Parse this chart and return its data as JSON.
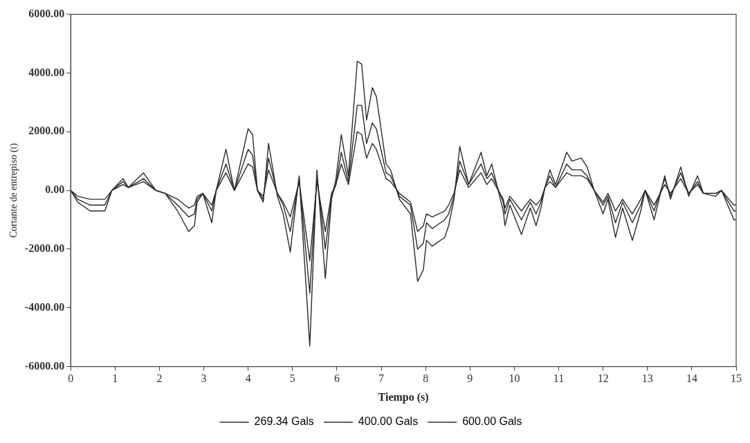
{
  "chart_data": {
    "type": "line",
    "xlabel": "Tiempo (s)",
    "ylabel": "Cortante de entrepiso (t)",
    "legend": "bottom",
    "grid": false,
    "marker": "none",
    "line_style": "solid",
    "xlim": [
      0,
      15
    ],
    "xticks": [
      0,
      1,
      2,
      3,
      4,
      5,
      6,
      7,
      8,
      9,
      10,
      11,
      12,
      13,
      14,
      15
    ],
    "ylim": [
      -6000,
      6000
    ],
    "yticks": [
      {
        "value": -6000,
        "label": "-6000.00"
      },
      {
        "value": -4000,
        "label": "-4000.00"
      },
      {
        "value": -2000,
        "label": "-2000.00"
      },
      {
        "value": 0,
        "label": "0.00"
      },
      {
        "value": 2000,
        "label": "2000.00"
      },
      {
        "value": 4000,
        "label": "4000.00"
      },
      {
        "value": 6000,
        "label": "6000.00"
      }
    ],
    "x": [
      0,
      0.16,
      0.44,
      0.77,
      0.93,
      1.18,
      1.3,
      1.64,
      1.92,
      2.13,
      2.41,
      2.66,
      2.79,
      2.85,
      2.98,
      3.18,
      3.28,
      3.5,
      3.69,
      4.0,
      4.1,
      4.21,
      4.34,
      4.46,
      4.66,
      4.79,
      4.95,
      5.15,
      5.39,
      5.55,
      5.74,
      5.88,
      5.98,
      6.1,
      6.26,
      6.46,
      6.56,
      6.67,
      6.8,
      6.89,
      7.11,
      7.21,
      7.41,
      7.66,
      7.82,
      7.95,
      8.02,
      8.15,
      8.43,
      8.52,
      8.64,
      8.77,
      8.97,
      9.25,
      9.38,
      9.49,
      9.75,
      9.79,
      9.9,
      10.16,
      10.36,
      10.49,
      10.6,
      10.69,
      10.8,
      10.93,
      11.18,
      11.3,
      11.51,
      11.64,
      11.8,
      12.0,
      12.11,
      12.28,
      12.44,
      12.66,
      12.85,
      12.95,
      13.15,
      13.39,
      13.52,
      13.75,
      13.93,
      14.13,
      14.26,
      14.54,
      14.67,
      14.95,
      15
    ],
    "series": [
      {
        "name": "269.34 Gals",
        "color": "#2a2a2a",
        "values": [
          0,
          -200,
          -300,
          -300,
          0,
          200,
          100,
          300,
          0,
          -100,
          -300,
          -600,
          -500,
          -200,
          -100,
          -500,
          0,
          600,
          0,
          900,
          800,
          0,
          -200,
          700,
          -100,
          -400,
          -900,
          300,
          -2400,
          300,
          -1400,
          -100,
          200,
          900,
          200,
          2000,
          1900,
          1100,
          1600,
          1400,
          400,
          300,
          -100,
          -400,
          -1400,
          -1200,
          -800,
          -900,
          -700,
          -500,
          -100,
          700,
          100,
          600,
          200,
          400,
          -300,
          -600,
          -200,
          -700,
          -300,
          -500,
          -300,
          100,
          300,
          100,
          600,
          500,
          500,
          400,
          0,
          -400,
          -100,
          -700,
          -300,
          -800,
          -300,
          0,
          -500,
          200,
          -100,
          400,
          -100,
          200,
          -100,
          -100,
          0,
          -500,
          -500
        ]
      },
      {
        "name": "400.00 Gals",
        "color": "#2a2a2a",
        "values": [
          0,
          -300,
          -500,
          -500,
          0,
          300,
          100,
          400,
          0,
          -100,
          -500,
          -900,
          -800,
          -300,
          -100,
          -700,
          0,
          900,
          0,
          1400,
          1200,
          0,
          -300,
          1100,
          -100,
          -500,
          -1400,
          400,
          -3500,
          500,
          -2000,
          -200,
          200,
          1300,
          300,
          2900,
          2900,
          1600,
          2300,
          2100,
          600,
          500,
          -200,
          -500,
          -2000,
          -1800,
          -1100,
          -1300,
          -1000,
          -800,
          -200,
          1000,
          200,
          900,
          400,
          600,
          -400,
          -800,
          -300,
          -1000,
          -400,
          -800,
          -400,
          100,
          500,
          100,
          900,
          700,
          700,
          500,
          0,
          -500,
          -200,
          -1100,
          -400,
          -1100,
          -500,
          0,
          -700,
          400,
          -200,
          600,
          -100,
          300,
          -100,
          -100,
          0,
          -700,
          -700
        ]
      },
      {
        "name": "600.00 Gals",
        "color": "#2a2a2a",
        "values": [
          0,
          -400,
          -700,
          -700,
          0,
          400,
          100,
          600,
          0,
          -100,
          -700,
          -1400,
          -1200,
          -400,
          -100,
          -1100,
          0,
          1400,
          0,
          2100,
          1900,
          0,
          -400,
          1600,
          -200,
          -800,
          -2100,
          500,
          -5300,
          700,
          -3000,
          -300,
          400,
          1900,
          500,
          4400,
          4300,
          2400,
          3500,
          3200,
          900,
          700,
          -300,
          -800,
          -3100,
          -2700,
          -1700,
          -1900,
          -1600,
          -1200,
          -300,
          1500,
          200,
          1300,
          500,
          900,
          -700,
          -1200,
          -500,
          -1500,
          -600,
          -1200,
          -600,
          100,
          700,
          200,
          1300,
          1000,
          1100,
          800,
          0,
          -800,
          -300,
          -1600,
          -600,
          -1700,
          -700,
          0,
          -1000,
          500,
          -300,
          800,
          -200,
          500,
          -100,
          -200,
          0,
          -1000,
          -1000
        ]
      }
    ]
  }
}
